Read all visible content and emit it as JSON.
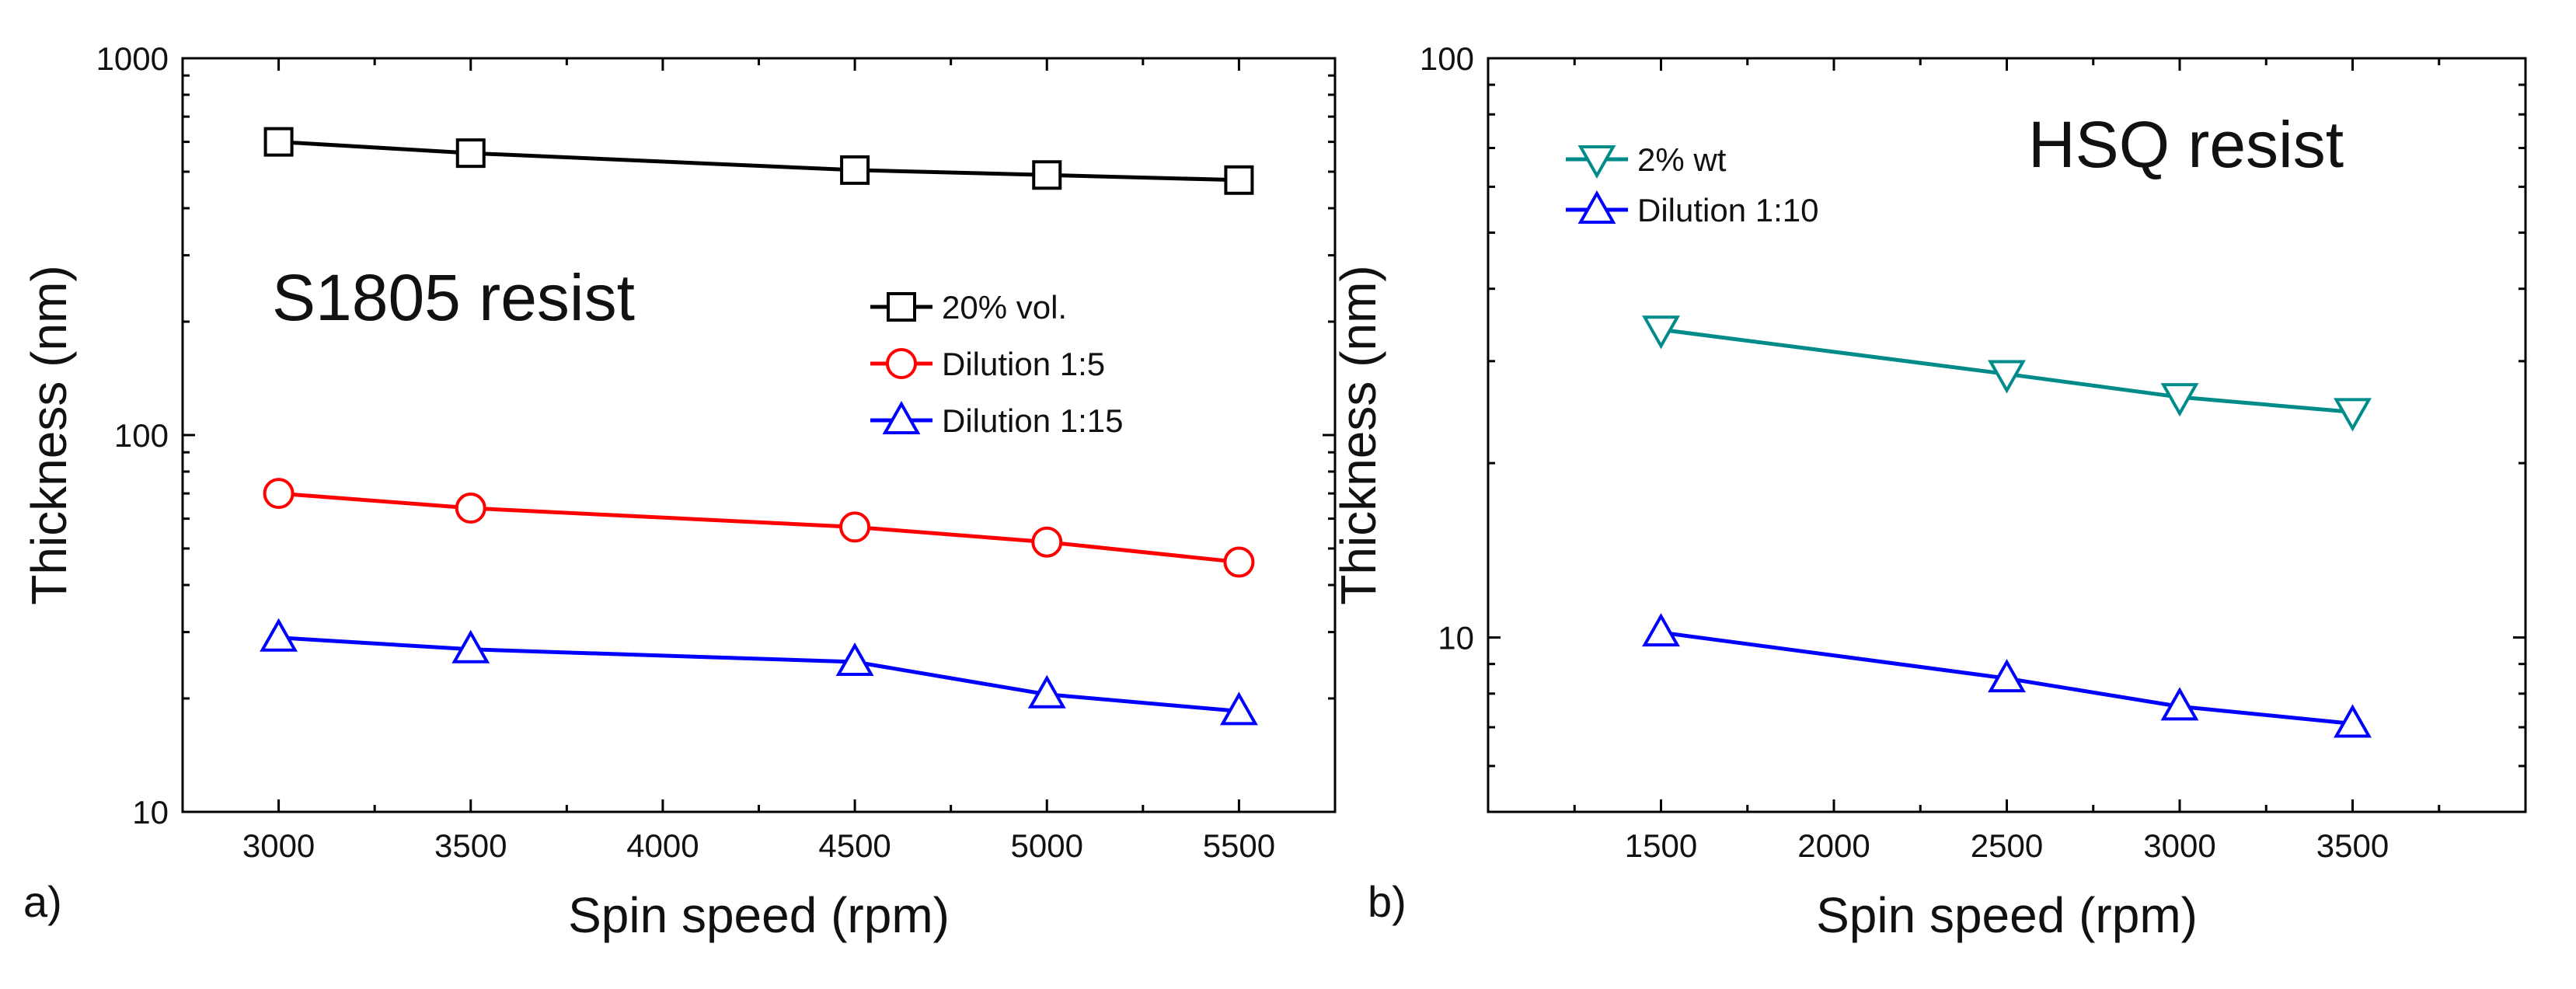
{
  "chart_data": [
    {
      "type": "line",
      "panel_label": "a)",
      "annotation": "S1805 resist",
      "xlabel": "Spin speed (rpm)",
      "ylabel": "Thickness (nm)",
      "yscale": "log",
      "xlim": [
        2750,
        5750
      ],
      "ylim": [
        10,
        1000
      ],
      "xticks": [
        "3000",
        "3500",
        "4000",
        "4500",
        "5000",
        "5500"
      ],
      "yticks": [
        "10",
        "100",
        "1000"
      ],
      "legend_position": "center-right",
      "series": [
        {
          "name": "20% vol.",
          "color": "#000000",
          "marker": "square",
          "x": [
            3000,
            3500,
            4500,
            5000,
            5500
          ],
          "y": [
            600,
            560,
            505,
            490,
            475
          ]
        },
        {
          "name": "Dilution 1:5",
          "color": "#ff0000",
          "marker": "circle",
          "x": [
            3000,
            3500,
            4500,
            5000,
            5500
          ],
          "y": [
            70,
            64,
            57,
            52,
            46
          ]
        },
        {
          "name": "Dilution 1:15",
          "color": "#0000ff",
          "marker": "triangle-up",
          "x": [
            3000,
            3500,
            4500,
            5000,
            5500
          ],
          "y": [
            29,
            27,
            25,
            20.5,
            18.5
          ]
        }
      ]
    },
    {
      "type": "line",
      "panel_label": "b)",
      "annotation": "HSQ resist",
      "xlabel": "Spin speed (rpm)",
      "ylabel": "Thickness (nm)",
      "yscale": "log",
      "xlim": [
        1000,
        4000
      ],
      "ylim": [
        5,
        100
      ],
      "xticks": [
        "1500",
        "2000",
        "2500",
        "3000",
        "3500"
      ],
      "yticks": [
        "10",
        "100"
      ],
      "legend_position": "top-left",
      "series": [
        {
          "name": "2% wt",
          "color": "#008b8b",
          "marker": "triangle-down",
          "x": [
            1500,
            2500,
            3000,
            3500
          ],
          "y": [
            34,
            28.5,
            26,
            24.5
          ]
        },
        {
          "name": "Dilution 1:10",
          "color": "#0000ff",
          "marker": "triangle-up",
          "x": [
            1500,
            2500,
            3000,
            3500
          ],
          "y": [
            10.2,
            8.5,
            7.6,
            7.1
          ]
        }
      ]
    }
  ]
}
